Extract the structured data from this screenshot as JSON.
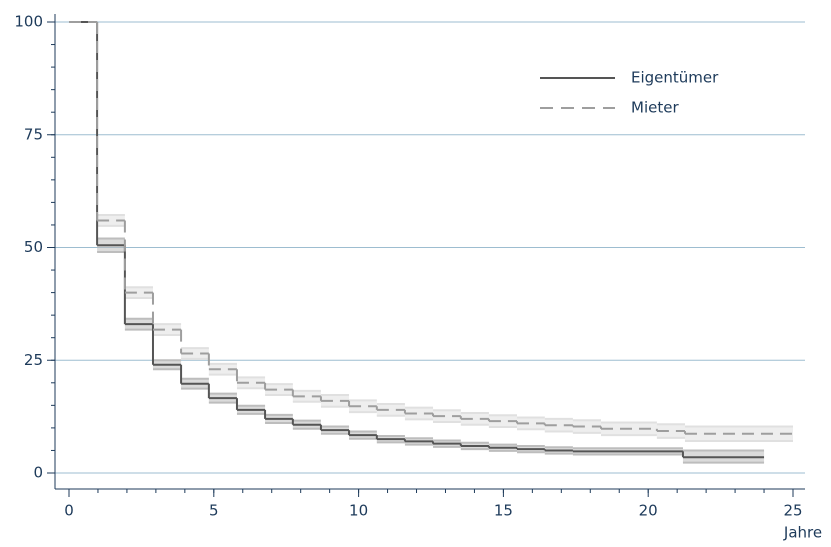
{
  "chart_data": {
    "type": "step",
    "x_label": "Jahre",
    "xlim": [
      0,
      25
    ],
    "xticks": [
      0,
      5,
      10,
      15,
      20,
      25
    ],
    "xminorticks": [
      0,
      1,
      2,
      3,
      4,
      5,
      6,
      7,
      8,
      9,
      10,
      11,
      12,
      13,
      14,
      15,
      16,
      17,
      18,
      19,
      20,
      21,
      22,
      23,
      24,
      25
    ],
    "ylim": [
      0,
      100
    ],
    "yticks": [
      0,
      25,
      50,
      75,
      100
    ],
    "yminorticks": [
      0,
      5,
      10,
      15,
      20,
      25,
      30,
      35,
      40,
      45,
      50,
      55,
      60,
      65,
      70,
      75,
      80,
      85,
      90,
      95,
      100
    ],
    "grid": true,
    "grid_color": "#9dbdd0",
    "series": [
      {
        "name": "Eigentümer",
        "color": "#555555",
        "band_color": "#bdbdbd",
        "dash": false,
        "x": [
          0,
          0.97,
          1.93,
          2.9,
          3.87,
          4.83,
          5.8,
          6.77,
          7.73,
          8.7,
          9.67,
          10.63,
          11.6,
          12.57,
          13.53,
          14.5,
          15.47,
          16.43,
          17.4,
          21.2,
          24
        ],
        "values": [
          100,
          50.5,
          33,
          24,
          19.8,
          16.6,
          14,
          12,
          10.7,
          9.5,
          8.4,
          7.5,
          7,
          6.5,
          6,
          5.6,
          5.3,
          5,
          4.8,
          3.5,
          3.5
        ],
        "lower": [
          100,
          49,
          31.8,
          23,
          18.7,
          15.6,
          13.1,
          11.1,
          9.8,
          8.7,
          7.6,
          6.8,
          6.3,
          5.8,
          5.3,
          4.9,
          4.6,
          4.3,
          4.1,
          2.3,
          2.3
        ],
        "upper": [
          100,
          52,
          34.2,
          25,
          20.9,
          17.6,
          14.9,
          12.9,
          11.6,
          10.3,
          9.2,
          8.2,
          7.7,
          7.2,
          6.7,
          6.3,
          6,
          5.7,
          5.5,
          5,
          5
        ]
      },
      {
        "name": "Mieter",
        "color": "#9e9e9e",
        "band_color": "#e0e0e0",
        "dash": true,
        "x": [
          0,
          0.97,
          1.93,
          2.9,
          3.87,
          4.83,
          5.8,
          6.77,
          7.73,
          8.7,
          9.67,
          10.63,
          11.6,
          12.57,
          13.53,
          14.5,
          15.47,
          16.43,
          17.4,
          18.37,
          20.3,
          21.27,
          25
        ],
        "values": [
          100,
          56,
          40,
          31.8,
          26.5,
          23,
          20,
          18.5,
          17,
          16,
          14.8,
          14,
          13.2,
          12.6,
          12,
          11.5,
          11,
          10.6,
          10.3,
          9.8,
          9.3,
          8.7,
          8.7
        ],
        "lower": [
          100,
          54.8,
          38.8,
          30.6,
          25.3,
          21.8,
          18.8,
          17.3,
          15.8,
          14.7,
          13.5,
          12.7,
          11.9,
          11.3,
          10.7,
          10.2,
          9.7,
          9.2,
          8.9,
          8.4,
          7.8,
          7.1,
          7.1
        ],
        "upper": [
          100,
          57.2,
          41.2,
          33,
          27.7,
          24.2,
          21.2,
          19.7,
          18.2,
          17.3,
          16.1,
          15.3,
          14.5,
          13.9,
          13.3,
          12.8,
          12.3,
          12,
          11.7,
          11.2,
          10.8,
          10.3,
          10.3
        ]
      }
    ]
  }
}
